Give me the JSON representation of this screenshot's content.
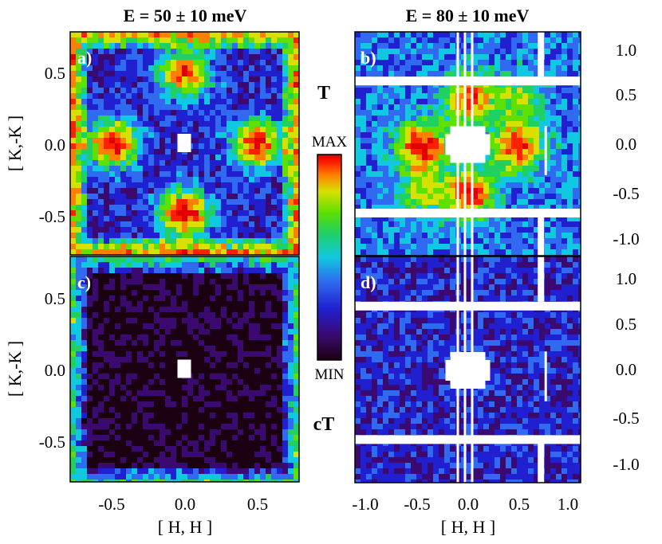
{
  "chart_data": [
    {
      "type": "heatmap",
      "panel_label": "a)",
      "title": "E = 50 ± 10 meV",
      "xlabel": "[ H, H ]",
      "ylabel": "[ K,-K ]",
      "xlim": [
        -0.8,
        0.8
      ],
      "ylim": [
        -0.8,
        0.8
      ],
      "yticks": [
        "0.5",
        "0.0",
        "-0.5"
      ],
      "xticks": [
        "-0.5",
        "0.0",
        "0.5"
      ],
      "intensity_peaks": [
        {
          "x": 0.0,
          "y": 0.5,
          "level": 0.85
        },
        {
          "x": 0.0,
          "y": -0.5,
          "level": 0.95
        },
        {
          "x": -0.5,
          "y": 0.0,
          "level": 0.95
        },
        {
          "x": 0.5,
          "y": 0.0,
          "level": 0.9
        }
      ],
      "background_level": 0.22
    },
    {
      "type": "heatmap",
      "panel_label": "b)",
      "title": "E = 80 ± 10 meV",
      "xlim": [
        -1.2,
        1.2
      ],
      "ylim": [
        -1.2,
        1.2
      ],
      "yticks": [
        "1.0",
        "0.5",
        "0.0",
        "-0.5",
        "-1.0"
      ],
      "intensity_peaks": [
        {
          "x": -0.5,
          "y": 0.0,
          "level": 0.95
        },
        {
          "x": 0.5,
          "y": 0.0,
          "level": 0.9
        },
        {
          "x": 0.0,
          "y": 0.5,
          "level": 0.85
        },
        {
          "x": 0.0,
          "y": -0.5,
          "level": 0.9
        },
        {
          "x": -0.5,
          "y": -0.5,
          "level": 0.6
        },
        {
          "x": 0.5,
          "y": 0.5,
          "level": 0.6
        }
      ],
      "background_level": 0.32
    },
    {
      "type": "heatmap",
      "panel_label": "c)",
      "xlabel": "[ H, H ]",
      "ylabel": "[ K,-K ]",
      "xlim": [
        -0.8,
        0.8
      ],
      "ylim": [
        -0.8,
        0.8
      ],
      "yticks": [
        "0.5",
        "0.0",
        "-0.5"
      ],
      "xticks": [
        "-0.5",
        "0.0",
        "0.5"
      ],
      "intensity_peaks": [],
      "background_level": 0.06
    },
    {
      "type": "heatmap",
      "panel_label": "d)",
      "xlabel": "[ H, H ]",
      "xlim": [
        -1.2,
        1.2
      ],
      "ylim": [
        -1.2,
        1.2
      ],
      "yticks": [
        "1.0",
        "0.5",
        "0.0",
        "-0.5",
        "-1.0"
      ],
      "xticks": [
        "-1.0",
        "-0.5",
        "0.0",
        "0.5",
        "1.0"
      ],
      "intensity_peaks": [],
      "background_level": 0.22
    }
  ],
  "colorbar": {
    "max_label": "MAX",
    "min_label": "MIN",
    "colors": [
      "#1a0010",
      "#3a0a70",
      "#2020d0",
      "#2f6af0",
      "#10c8e0",
      "#20d060",
      "#60e000",
      "#d8e000",
      "#ff8000",
      "#ff2000",
      "#e00000"
    ]
  },
  "side_labels": {
    "top": "T",
    "bottom": "cT"
  },
  "colormap": [
    "#1a0010",
    "#3a0a70",
    "#2020d0",
    "#2f6af0",
    "#10c8e0",
    "#20d060",
    "#60e000",
    "#d8e000",
    "#ff8000",
    "#ff2000",
    "#e00000"
  ]
}
